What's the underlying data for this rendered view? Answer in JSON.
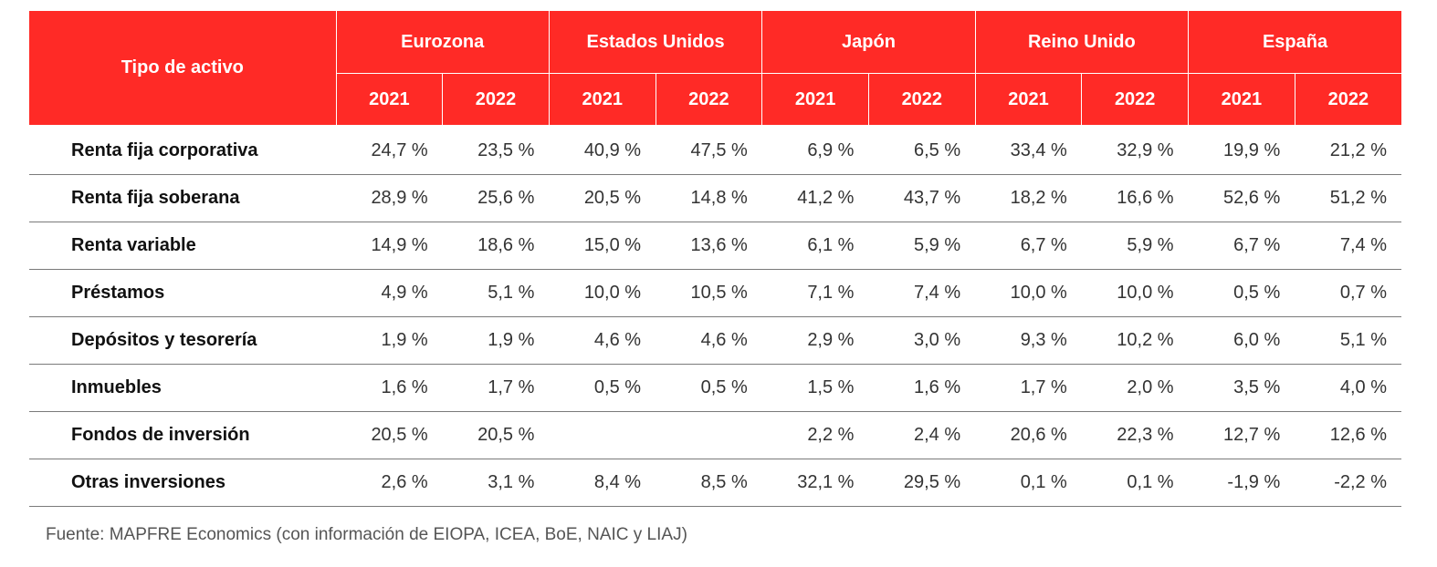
{
  "table": {
    "type_header": "Tipo de activo",
    "regions": [
      "Eurozona",
      "Estados Unidos",
      "Japón",
      "Reino Unido",
      "España"
    ],
    "years": [
      "2021",
      "2022"
    ],
    "rows": [
      {
        "label": "Renta fija corporativa",
        "values": [
          "24,7 %",
          "23,5 %",
          "40,9 %",
          "47,5 %",
          "6,9 %",
          "6,5 %",
          "33,4 %",
          "32,9 %",
          "19,9 %",
          "21,2 %"
        ]
      },
      {
        "label": "Renta fija soberana",
        "values": [
          "28,9 %",
          "25,6 %",
          "20,5 %",
          "14,8 %",
          "41,2 %",
          "43,7 %",
          "18,2 %",
          "16,6 %",
          "52,6 %",
          "51,2 %"
        ]
      },
      {
        "label": "Renta variable",
        "values": [
          "14,9 %",
          "18,6 %",
          "15,0 %",
          "13,6 %",
          "6,1 %",
          "5,9 %",
          "6,7 %",
          "5,9 %",
          "6,7 %",
          "7,4 %"
        ]
      },
      {
        "label": "Préstamos",
        "values": [
          "4,9 %",
          "5,1 %",
          "10,0 %",
          "10,5 %",
          "7,1 %",
          "7,4 %",
          "10,0 %",
          "10,0 %",
          "0,5 %",
          "0,7 %"
        ]
      },
      {
        "label": "Depósitos y tesorería",
        "values": [
          "1,9 %",
          "1,9 %",
          "4,6 %",
          "4,6 %",
          "2,9 %",
          "3,0 %",
          "9,3 %",
          "10,2 %",
          "6,0 %",
          "5,1 %"
        ]
      },
      {
        "label": "Inmuebles",
        "values": [
          "1,6 %",
          "1,7 %",
          "0,5 %",
          "0,5 %",
          "1,5 %",
          "1,6 %",
          "1,7 %",
          "2,0 %",
          "3,5 %",
          "4,0 %"
        ]
      },
      {
        "label": "Fondos de inversión",
        "values": [
          "20,5 %",
          "20,5 %",
          "",
          "",
          "2,2 %",
          "2,4 %",
          "20,6 %",
          "22,3 %",
          "12,7 %",
          "12,6 %"
        ]
      },
      {
        "label": "Otras inversiones",
        "values": [
          "2,6 %",
          "3,1 %",
          "8,4 %",
          "8,5 %",
          "32,1 %",
          "29,5 %",
          "0,1 %",
          "0,1 %",
          "-1,9 %",
          "-2,2 %"
        ]
      }
    ]
  },
  "source": "Fuente: MAPFRE Economics (con información de EIOPA, ICEA, BoE, NAIC y LIAJ)",
  "colors": {
    "header_bg": "#ff2a26",
    "header_text": "#ffffff",
    "rule": "#7a7a7a"
  }
}
